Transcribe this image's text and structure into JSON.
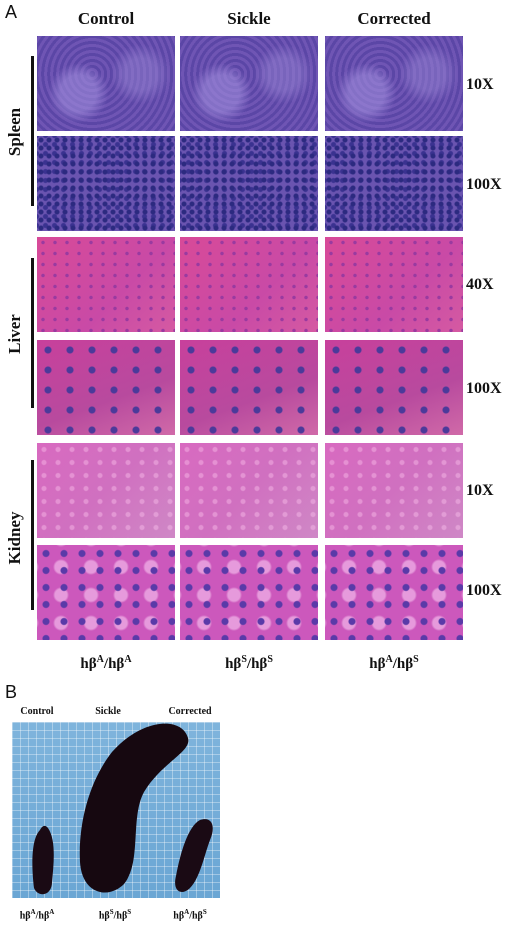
{
  "panel_a": {
    "label": "A",
    "columns": [
      "Control",
      "Sickle",
      "Corrected"
    ],
    "groups": [
      "Spleen",
      "Liver",
      "Kidney"
    ],
    "magnifications": [
      "10X",
      "100X",
      "40X",
      "100X",
      "10X",
      "100X"
    ],
    "genotypes": [
      [
        "hβ",
        "A",
        "/",
        "hβ",
        "A"
      ],
      [
        "hβ",
        "S",
        "/",
        "hβ",
        "S"
      ],
      [
        "hβ",
        "A",
        "/",
        "hβ",
        "S"
      ]
    ]
  },
  "panel_b": {
    "label": "B",
    "columns": [
      "Control",
      "Sickle",
      "Corrected"
    ],
    "genotypes": [
      [
        "hβ",
        "A",
        "/",
        "hβ",
        "A"
      ],
      [
        "hβ",
        "S",
        "/",
        "hβ",
        "S"
      ],
      [
        "hβ",
        "A",
        "/",
        "hβ",
        "S"
      ]
    ]
  }
}
